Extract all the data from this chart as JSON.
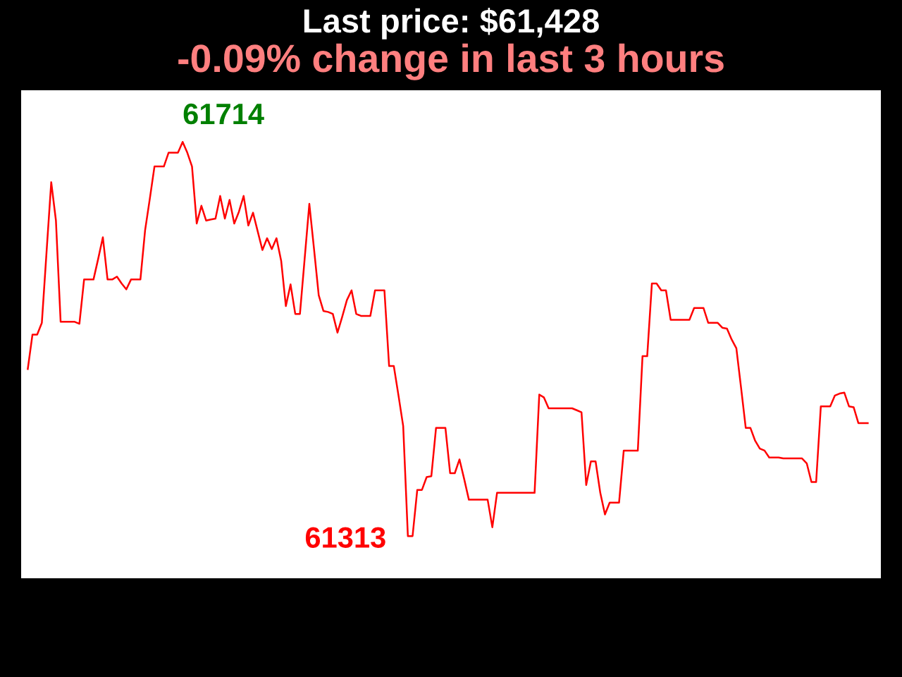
{
  "chart_data": {
    "type": "line",
    "title": "Last price: $61,428",
    "subtitle": "-0.09% change in last 3 hours",
    "categories": [
      null,
      null,
      null,
      null,
      null,
      null,
      null,
      null,
      null,
      null,
      null,
      null,
      null,
      null,
      null,
      null,
      null,
      null,
      null,
      null,
      null,
      null,
      null,
      null,
      null,
      null,
      null,
      null,
      null,
      null,
      null,
      null,
      null,
      null,
      null,
      null,
      null,
      null,
      null,
      null,
      null,
      null,
      null,
      null,
      null,
      null,
      null,
      null,
      null,
      null,
      null,
      null,
      null,
      null,
      null,
      null,
      null,
      null,
      null,
      null,
      null,
      null,
      null,
      null,
      null,
      null,
      null,
      null,
      null,
      null,
      null,
      null,
      null,
      null,
      null,
      null,
      null,
      null,
      null,
      null,
      null,
      null,
      null,
      null,
      null,
      null,
      null,
      null,
      null,
      null,
      null,
      null,
      null,
      null,
      null,
      null,
      null,
      null,
      null,
      null,
      null,
      null,
      null,
      null,
      null,
      null,
      null,
      null,
      null,
      null,
      null,
      null,
      null,
      null,
      null,
      null,
      null,
      null,
      null,
      null,
      null,
      null,
      null,
      null,
      null,
      null,
      null,
      null,
      null,
      null,
      null,
      null,
      null,
      null,
      null,
      null,
      null,
      null,
      null,
      null,
      null,
      null,
      null,
      null,
      null,
      null,
      null,
      null,
      null,
      null,
      null,
      null,
      null,
      null,
      null,
      null,
      null,
      null,
      null,
      null,
      null,
      null,
      null,
      null,
      null,
      null,
      null,
      null,
      null,
      null,
      null,
      null,
      null,
      null,
      null,
      null,
      null,
      null,
      null,
      null
    ],
    "values": [
      61483,
      61518,
      61518,
      61530,
      61602,
      61673,
      61634,
      61531,
      61531,
      61531,
      61531,
      61529,
      61574,
      61574,
      61574,
      61595,
      61617,
      61574,
      61574,
      61577,
      61570,
      61564,
      61574,
      61574,
      61574,
      61624,
      61656,
      61689,
      61689,
      61689,
      61703,
      61703,
      61703,
      61714,
      61703,
      61689,
      61631,
      61649,
      61634,
      61635,
      61636,
      61659,
      61636,
      61655,
      61631,
      61643,
      61659,
      61629,
      61642,
      61623,
      61604,
      61616,
      61605,
      61616,
      61593,
      61547,
      61569,
      61539,
      61539,
      61595,
      61651,
      61605,
      61558,
      61542,
      61541,
      61539,
      61520,
      61536,
      61553,
      61563,
      61539,
      61537,
      61537,
      61537,
      61563,
      61563,
      61563,
      61486,
      61486,
      61456,
      61425,
      61313,
      61313,
      61360,
      61360,
      61373,
      61374,
      61423,
      61423,
      61423,
      61377,
      61377,
      61391,
      61371,
      61350,
      61350,
      61350,
      61350,
      61350,
      61322,
      61357,
      61357,
      61357,
      61357,
      61357,
      61357,
      61357,
      61357,
      61357,
      61457,
      61454,
      61443,
      61443,
      61443,
      61443,
      61443,
      61443,
      61441,
      61439,
      61365,
      61389,
      61389,
      61357,
      61335,
      61347,
      61347,
      61347,
      61400,
      61400,
      61400,
      61400,
      61496,
      61496,
      61570,
      61570,
      61563,
      61563,
      61533,
      61533,
      61533,
      61533,
      61533,
      61545,
      61545,
      61545,
      61530,
      61530,
      61530,
      61525,
      61524,
      61513,
      61504,
      61464,
      61423,
      61423,
      61410,
      61402,
      61400,
      61393,
      61393,
      61393,
      61392,
      61392,
      61392,
      61392,
      61392,
      61387,
      61368,
      61368,
      61445,
      61445,
      61445,
      61456,
      61458,
      61459,
      61445,
      61444,
      61428,
      61428,
      61428
    ],
    "value_labels": [
      null,
      null,
      null,
      null,
      null,
      null,
      null,
      null,
      null,
      null,
      null,
      null,
      null,
      null,
      null,
      null,
      null,
      null,
      null,
      null,
      null,
      null,
      null,
      null,
      null,
      null,
      null,
      null,
      null,
      null,
      null,
      null,
      null,
      "61714",
      null,
      null,
      null,
      null,
      null,
      null,
      null,
      null,
      null,
      null,
      null,
      null,
      null,
      null,
      null,
      null,
      null,
      null,
      null,
      null,
      null,
      null,
      null,
      null,
      null,
      null,
      null,
      null,
      null,
      null,
      null,
      null,
      null,
      null,
      null,
      null,
      null,
      null,
      null,
      null,
      null,
      null,
      null,
      null,
      null,
      null,
      null,
      "61313",
      null,
      null,
      null,
      null,
      null,
      null,
      null,
      null,
      null,
      null,
      null,
      null,
      null,
      null,
      null,
      null,
      null,
      null,
      null,
      null,
      null,
      null,
      null,
      null,
      null,
      null,
      null,
      null,
      null,
      null,
      null,
      null,
      null,
      null,
      null,
      null,
      null,
      null,
      null,
      null,
      null,
      null,
      null,
      null,
      null,
      null,
      null,
      null,
      null,
      null,
      null,
      null,
      null,
      null,
      null,
      null,
      null,
      null,
      null,
      null,
      null,
      null,
      null,
      null,
      null,
      null,
      null,
      null,
      null,
      null,
      null,
      null,
      null,
      null,
      null,
      null,
      null,
      null,
      null,
      null,
      null,
      null,
      null,
      null,
      null,
      null,
      null,
      null,
      null,
      null,
      null,
      null,
      null,
      null,
      null,
      null,
      null,
      null
    ],
    "color": "#ff0000"
  }
}
